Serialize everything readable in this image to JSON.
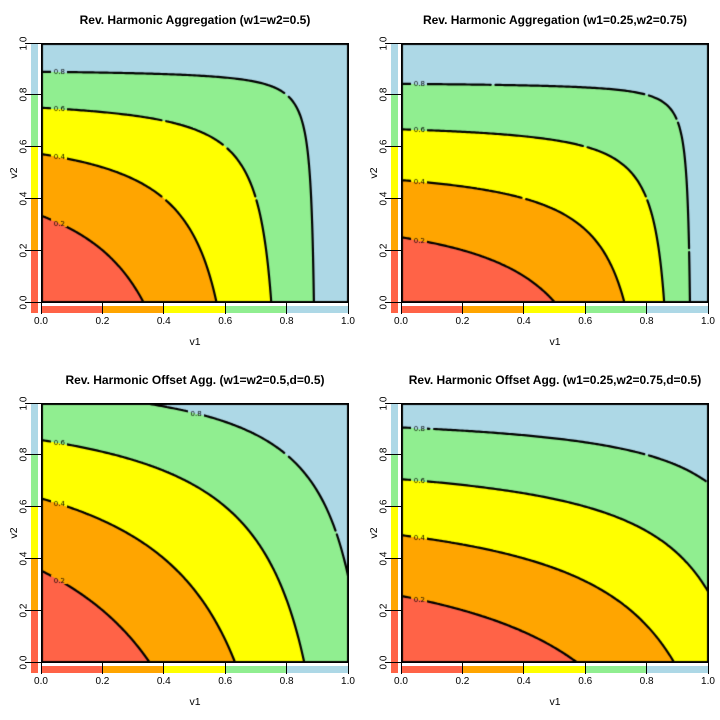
{
  "figure": {
    "background": "#ffffff",
    "rows": 2,
    "cols": 2,
    "box_color": "#000000"
  },
  "chart_data": [
    {
      "type": "filled_contour",
      "title": "Rev. Harmonic Aggregation (w1=w2=0.5)",
      "xlabel": "v1",
      "ylabel": "v2",
      "xlim": [
        0,
        1
      ],
      "ylim": [
        0,
        1
      ],
      "xticks": [
        "0.0",
        "0.2",
        "0.4",
        "0.6",
        "0.8",
        "1.0"
      ],
      "yticks": [
        "0.0",
        "0.2",
        "0.4",
        "0.6",
        "0.8",
        "1.0"
      ],
      "levels": [
        0.2,
        0.4,
        0.6,
        0.8
      ],
      "contour_labels": [
        "0.2",
        "0.4",
        "0.6",
        "0.8"
      ],
      "function": {
        "kind": "reverse_weighted_harmonic",
        "w1": 0.5,
        "w2": 0.5,
        "d": 0
      },
      "bands": [
        {
          "range": [
            0.0,
            0.2
          ],
          "color": "#ff6347",
          "name": "tomato"
        },
        {
          "range": [
            0.2,
            0.4
          ],
          "color": "#ffa500",
          "name": "orange"
        },
        {
          "range": [
            0.4,
            0.6
          ],
          "color": "#ffff00",
          "name": "yellow"
        },
        {
          "range": [
            0.6,
            0.8
          ],
          "color": "#90ee90",
          "name": "lightgreen"
        },
        {
          "range": [
            0.8,
            1.0
          ],
          "color": "#add8e6",
          "name": "lightblue"
        }
      ],
      "line_color": "#000000",
      "grid": false,
      "legend": "color key strips along left and bottom axes"
    },
    {
      "type": "filled_contour",
      "title": "Rev. Harmonic Aggregation (w1=0.25,w2=0.75)",
      "xlabel": "v1",
      "ylabel": "v2",
      "xlim": [
        0,
        1
      ],
      "ylim": [
        0,
        1
      ],
      "xticks": [
        "0.0",
        "0.2",
        "0.4",
        "0.6",
        "0.8",
        "1.0"
      ],
      "yticks": [
        "0.0",
        "0.2",
        "0.4",
        "0.6",
        "0.8",
        "1.0"
      ],
      "levels": [
        0.2,
        0.4,
        0.6,
        0.8
      ],
      "contour_labels": [
        "0.2",
        "0.4",
        "0.6",
        "0.8"
      ],
      "function": {
        "kind": "reverse_weighted_harmonic",
        "w1": 0.25,
        "w2": 0.75,
        "d": 0
      },
      "bands": [
        {
          "range": [
            0.0,
            0.2
          ],
          "color": "#ff6347",
          "name": "tomato"
        },
        {
          "range": [
            0.2,
            0.4
          ],
          "color": "#ffa500",
          "name": "orange"
        },
        {
          "range": [
            0.4,
            0.6
          ],
          "color": "#ffff00",
          "name": "yellow"
        },
        {
          "range": [
            0.6,
            0.8
          ],
          "color": "#90ee90",
          "name": "lightgreen"
        },
        {
          "range": [
            0.8,
            1.0
          ],
          "color": "#add8e6",
          "name": "lightblue"
        }
      ],
      "line_color": "#000000",
      "grid": false,
      "legend": "color key strips along left and bottom axes"
    },
    {
      "type": "filled_contour",
      "title": "Rev. Harmonic Offset Agg. (w1=w2=0.5,d=0.5)",
      "xlabel": "v1",
      "ylabel": "v2",
      "xlim": [
        0,
        1
      ],
      "ylim": [
        0,
        1
      ],
      "xticks": [
        "0.0",
        "0.2",
        "0.4",
        "0.6",
        "0.8",
        "1.0"
      ],
      "yticks": [
        "0.0",
        "0.2",
        "0.4",
        "0.6",
        "0.8",
        "1.0"
      ],
      "levels": [
        0.2,
        0.4,
        0.6,
        0.8
      ],
      "contour_labels": [
        "0.2",
        "0.4",
        "0.6",
        "0.8"
      ],
      "function": {
        "kind": "reverse_weighted_harmonic_offset",
        "w1": 0.5,
        "w2": 0.5,
        "d": 0.5
      },
      "bands": [
        {
          "range": [
            0.0,
            0.2
          ],
          "color": "#ff6347",
          "name": "tomato"
        },
        {
          "range": [
            0.2,
            0.4
          ],
          "color": "#ffa500",
          "name": "orange"
        },
        {
          "range": [
            0.4,
            0.6
          ],
          "color": "#ffff00",
          "name": "yellow"
        },
        {
          "range": [
            0.6,
            0.8
          ],
          "color": "#90ee90",
          "name": "lightgreen"
        },
        {
          "range": [
            0.8,
            1.0
          ],
          "color": "#add8e6",
          "name": "lightblue"
        }
      ],
      "line_color": "#000000",
      "grid": false,
      "legend": "color key strips along left and bottom axes"
    },
    {
      "type": "filled_contour",
      "title": "Rev. Harmonic Offset Agg. (w1=0.25,w2=0.75,d=0.5)",
      "xlabel": "v1",
      "ylabel": "v2",
      "xlim": [
        0,
        1
      ],
      "ylim": [
        0,
        1
      ],
      "xticks": [
        "0.0",
        "0.2",
        "0.4",
        "0.6",
        "0.8",
        "1.0"
      ],
      "yticks": [
        "0.0",
        "0.2",
        "0.4",
        "0.6",
        "0.8",
        "1.0"
      ],
      "levels": [
        0.2,
        0.4,
        0.6,
        0.8
      ],
      "contour_labels": [
        "0.2",
        "0.4",
        "0.6",
        "0.8"
      ],
      "function": {
        "kind": "reverse_weighted_harmonic_offset",
        "w1": 0.25,
        "w2": 0.75,
        "d": 0.5
      },
      "bands": [
        {
          "range": [
            0.0,
            0.2
          ],
          "color": "#ff6347",
          "name": "tomato"
        },
        {
          "range": [
            0.2,
            0.4
          ],
          "color": "#ffa500",
          "name": "orange"
        },
        {
          "range": [
            0.4,
            0.6
          ],
          "color": "#ffff00",
          "name": "yellow"
        },
        {
          "range": [
            0.6,
            0.8
          ],
          "color": "#90ee90",
          "name": "lightgreen"
        },
        {
          "range": [
            0.8,
            1.0
          ],
          "color": "#add8e6",
          "name": "lightblue"
        }
      ],
      "line_color": "#000000",
      "grid": false,
      "legend": "color key strips along left and bottom axes"
    }
  ]
}
